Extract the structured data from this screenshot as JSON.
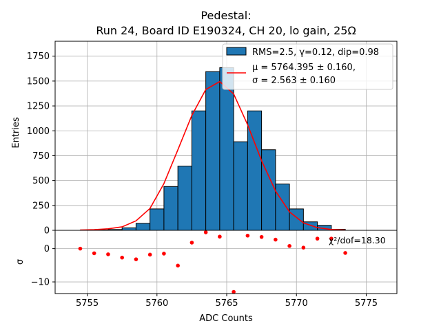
{
  "chart_data": {
    "type": "bar",
    "title_line1": "Pedestal:",
    "title_line2": "Run 24, Board ID E190324, CH 20, lo gain, 25Ω",
    "xlabel": "ADC Counts",
    "ylabel_main": "Entries",
    "ylabel_resid": "σ",
    "xlim": [
      5752.7,
      5777.2
    ],
    "ylim_main": [
      0,
      1900
    ],
    "ylim_resid": [
      -13.5,
      5.5
    ],
    "grid": true,
    "x_ticks": [
      5755,
      5760,
      5765,
      5770,
      5775
    ],
    "y_ticks_main": [
      0,
      250,
      500,
      750,
      1000,
      1250,
      1500,
      1750
    ],
    "y_ticks_resid": [
      -10,
      0
    ],
    "hist": {
      "bin_edges": [
        5754.5,
        5755.5,
        5756.5,
        5757.5,
        5758.5,
        5759.5,
        5760.5,
        5761.5,
        5762.5,
        5763.5,
        5764.5,
        5765.5,
        5766.5,
        5767.5,
        5768.5,
        5769.5,
        5770.5,
        5771.5,
        5772.5,
        5773.5
      ],
      "counts": [
        3,
        4,
        8,
        25,
        70,
        215,
        440,
        645,
        1200,
        1595,
        1635,
        890,
        1200,
        810,
        465,
        215,
        85,
        50,
        10
      ],
      "fill": "#1f77b4",
      "edge": "#000000",
      "legend_label": "RMS=2.5, γ=0.12, dip=0.98"
    },
    "fit": {
      "color": "#ff0000",
      "legend_label_line1": "μ = 5764.395 ± 0.160,",
      "legend_label_line2": "σ = 2.563 ± 0.160",
      "x": [
        5754.5,
        5755.5,
        5756.5,
        5757.5,
        5758.5,
        5759.5,
        5760.5,
        5761.5,
        5762.5,
        5763.5,
        5764.5,
        5765.5,
        5766.5,
        5767.5,
        5768.5,
        5769.5,
        5770.5,
        5771.5,
        5772.5,
        5773.5
      ],
      "y": [
        3,
        7,
        15,
        35,
        95,
        220,
        470,
        810,
        1155,
        1415,
        1495,
        1370,
        1060,
        700,
        395,
        185,
        75,
        27,
        8,
        2
      ]
    },
    "residuals": {
      "color": "#ff0000",
      "annotation": "χ²/dof=18.30",
      "x": [
        5754.5,
        5755.5,
        5756.5,
        5757.5,
        5758.5,
        5759.5,
        5760.5,
        5761.5,
        5762.5,
        5763.5,
        5764.5,
        5765.5,
        5766.5,
        5767.5,
        5768.5,
        5769.5,
        5770.5,
        5771.5,
        5772.5,
        5773.5
      ],
      "y": [
        0.0,
        -1.4,
        -1.7,
        -2.7,
        -3.2,
        -1.8,
        -1.5,
        -5.1,
        1.8,
        4.9,
        3.6,
        -13.0,
        3.9,
        3.5,
        2.7,
        0.8,
        0.3,
        3.0,
        3.0,
        -1.3
      ]
    }
  }
}
